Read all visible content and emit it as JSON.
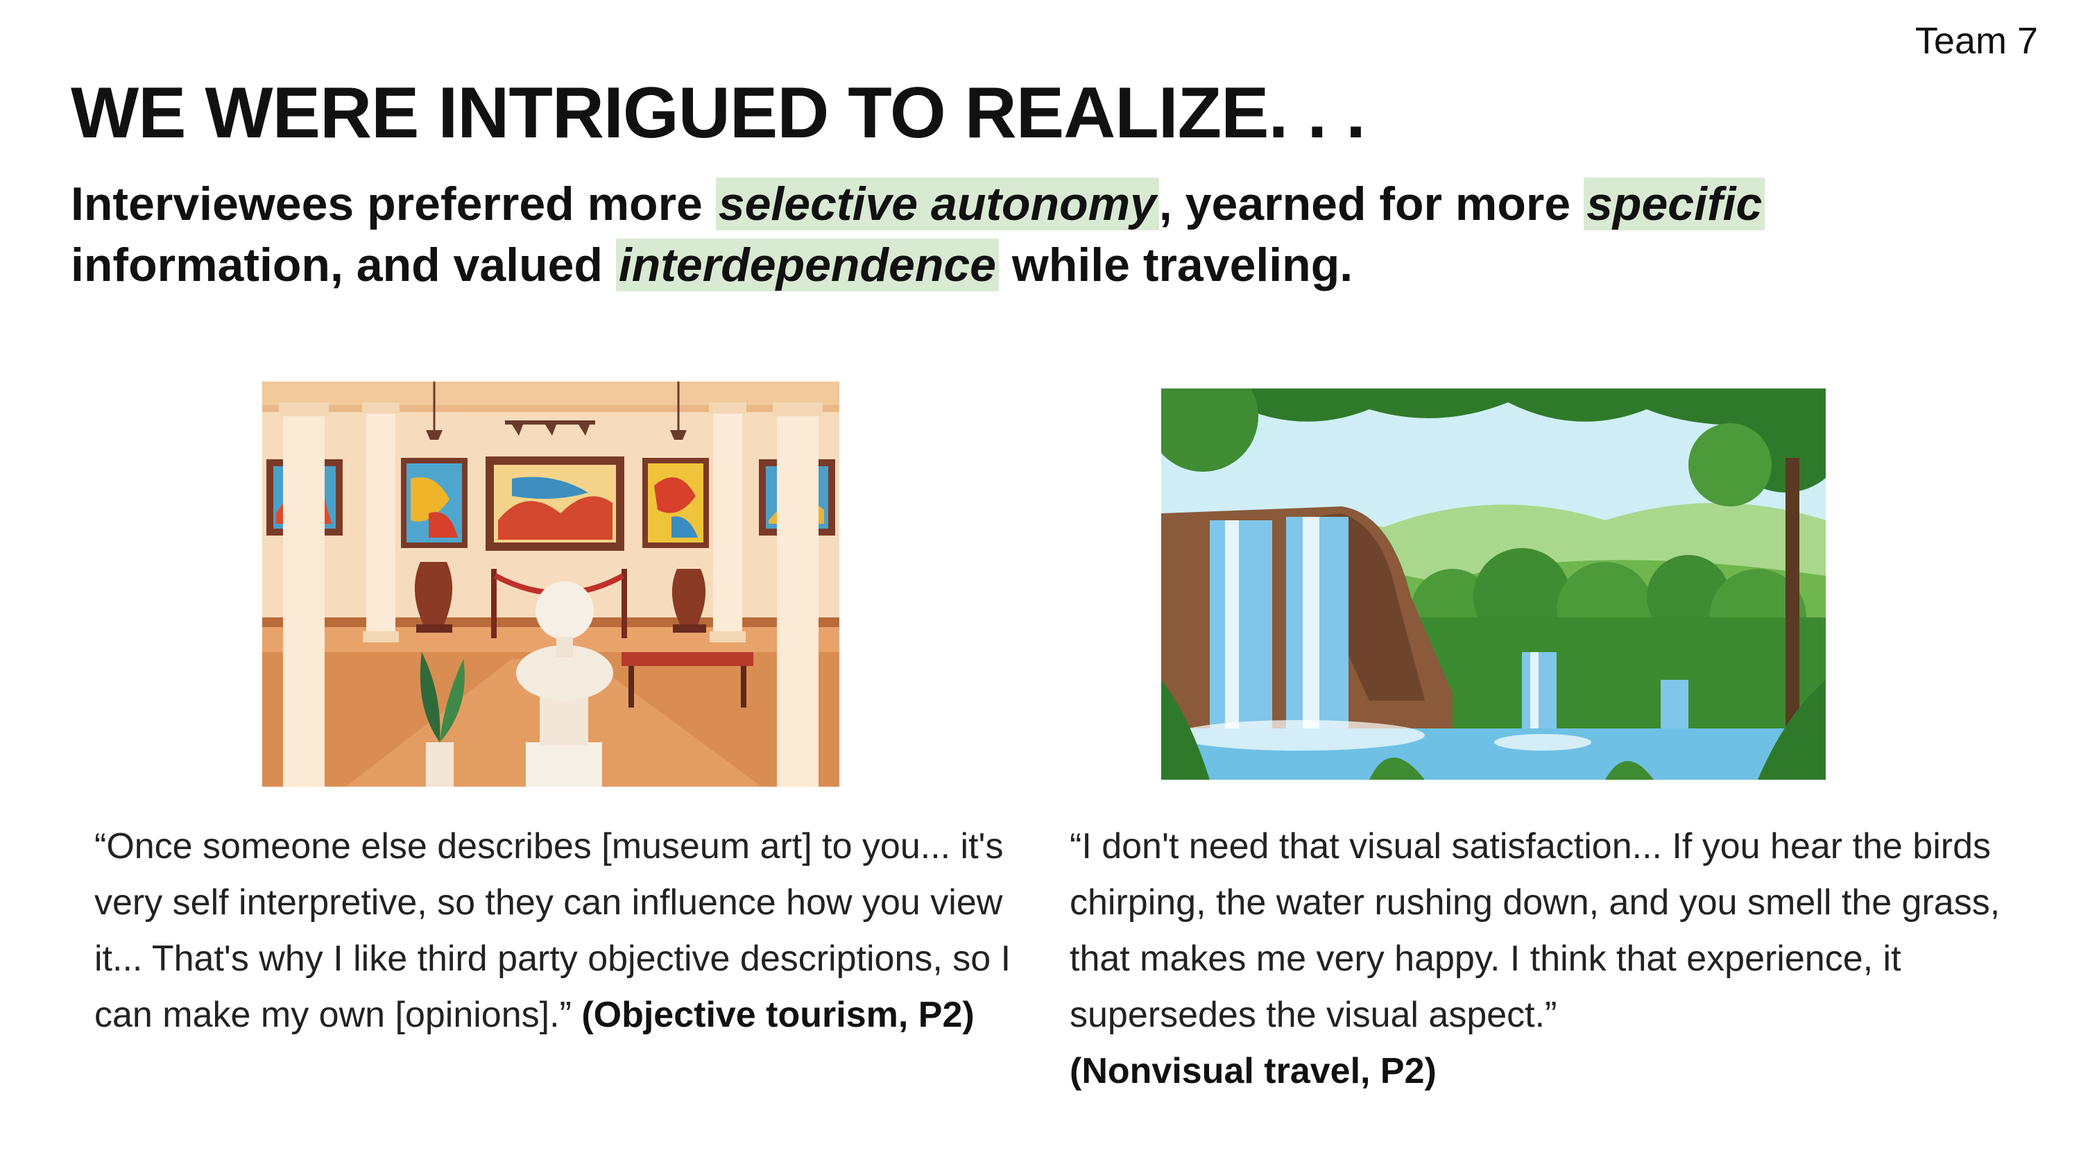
{
  "header": {
    "team": "Team 7"
  },
  "slide": {
    "title": "WE WERE INTRIGUED TO REALIZE. . .",
    "subtitle": {
      "p1": "Interviewees preferred more ",
      "h1": "selective autonomy",
      "p2": ", yearned for more ",
      "h2": "specific",
      "p3": " information, and valued ",
      "h3": "interdependence",
      "p4": " while traveling."
    }
  },
  "colors": {
    "highlight": "#d9ead3"
  },
  "quotes": {
    "left": {
      "text": "“Once someone else describes [museum art] to you... it's very self interpretive, so they can influence how you view it... That's why I like third party objective descriptions, so I can make my own [opinions].”",
      "attribution": "(Objective tourism, P2)"
    },
    "right": {
      "text": "“I don't need that visual satisfaction... If you hear the birds chirping, the water rushing down, and you smell the grass, that makes me very happy. I think that experience, it supersedes the visual aspect.”",
      "attribution": "(Nonvisual travel, P2)"
    }
  }
}
